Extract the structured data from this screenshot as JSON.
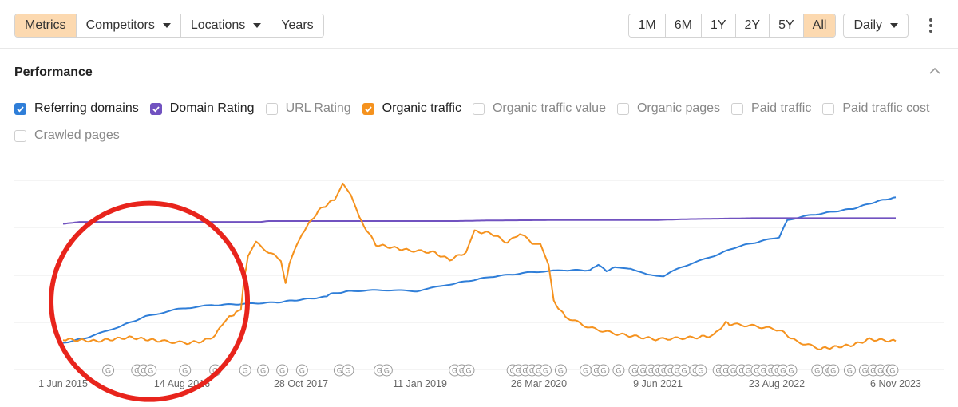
{
  "toolbar": {
    "tabs": [
      {
        "label": "Metrics",
        "active": true
      },
      {
        "label": "Competitors",
        "dropdown": true
      },
      {
        "label": "Locations",
        "dropdown": true
      },
      {
        "label": "Years"
      }
    ],
    "ranges": [
      {
        "label": "1M"
      },
      {
        "label": "6M"
      },
      {
        "label": "1Y"
      },
      {
        "label": "2Y"
      },
      {
        "label": "5Y"
      },
      {
        "label": "All",
        "active": true
      }
    ],
    "interval": "Daily"
  },
  "panel": {
    "title": "Performance"
  },
  "legend": [
    {
      "label": "Referring domains",
      "checked": true,
      "color": "#2f7ed8"
    },
    {
      "label": "Domain Rating",
      "checked": true,
      "color": "#7152c0"
    },
    {
      "label": "URL Rating",
      "checked": false
    },
    {
      "label": "Organic traffic",
      "checked": true,
      "color": "#f5921e"
    },
    {
      "label": "Organic traffic value",
      "checked": false
    },
    {
      "label": "Organic pages",
      "checked": false
    },
    {
      "label": "Paid traffic",
      "checked": false
    },
    {
      "label": "Paid traffic cost",
      "checked": false
    },
    {
      "label": "Crawled pages",
      "checked": false
    }
  ],
  "chart_data": {
    "type": "line",
    "x_labels": [
      "1 Jun 2015",
      "14 Aug 2016",
      "28 Oct 2017",
      "11 Jan 2019",
      "26 Mar 2020",
      "9 Jun 2021",
      "23 Aug 2022",
      "6 Nov 2023"
    ],
    "xlim": [
      "2015-06-01",
      "2023-11-06"
    ],
    "y_range": [
      0,
      100
    ],
    "y_axis_labels": "none shown",
    "grid": true,
    "update_marker": "G",
    "update_markers_x": [
      "2015-11-15",
      "2016-03-01",
      "2016-03-25",
      "2016-04-20",
      "2016-08-25",
      "2016-12-15",
      "2017-04-05",
      "2017-06-10",
      "2017-08-20",
      "2017-11-01",
      "2018-03-20",
      "2018-04-20",
      "2018-08-15",
      "2018-09-10",
      "2019-05-20",
      "2019-06-15",
      "2019-07-10",
      "2019-12-20",
      "2020-01-10",
      "2020-02-05",
      "2020-03-01",
      "2020-03-25",
      "2020-04-20",
      "2020-06-15",
      "2020-09-15",
      "2020-10-25",
      "2020-11-20",
      "2021-01-15",
      "2021-03-15",
      "2021-04-15",
      "2021-05-15",
      "2021-06-10",
      "2021-07-01",
      "2021-07-25",
      "2021-08-20",
      "2021-09-15",
      "2021-10-25",
      "2021-11-15",
      "2022-01-20",
      "2022-02-15",
      "2022-03-15",
      "2022-04-15",
      "2022-05-10",
      "2022-06-10",
      "2022-07-05",
      "2022-08-01",
      "2022-08-25",
      "2022-09-15",
      "2022-10-15",
      "2023-01-20",
      "2023-03-01",
      "2023-03-20",
      "2023-05-20",
      "2023-07-15",
      "2023-08-15",
      "2023-09-10",
      "2023-10-10",
      "2023-10-25"
    ],
    "annotation": {
      "shape": "circle",
      "color": "#e8241c",
      "cx": "2016-04-15",
      "cy": 36
    },
    "series": [
      {
        "name": "Referring domains",
        "color": "#2f7ed8",
        "points": [
          [
            "2015-06-01",
            14
          ],
          [
            "2015-09-01",
            17
          ],
          [
            "2016-01-01",
            23
          ],
          [
            "2016-04-01",
            28
          ],
          [
            "2016-08-01",
            32
          ],
          [
            "2016-12-01",
            34
          ],
          [
            "2017-03-01",
            34.5
          ],
          [
            "2017-08-01",
            35.5
          ],
          [
            "2017-11-01",
            37
          ],
          [
            "2018-02-01",
            38.5
          ],
          [
            "2018-02-15",
            40
          ],
          [
            "2018-05-01",
            41.5
          ],
          [
            "2018-09-01",
            42
          ],
          [
            "2019-01-01",
            41.5
          ],
          [
            "2019-05-01",
            45
          ],
          [
            "2019-10-01",
            49
          ],
          [
            "2020-03-01",
            51.5
          ],
          [
            "2020-07-01",
            52.5
          ],
          [
            "2020-10-01",
            52.5
          ],
          [
            "2020-11-01",
            55.5
          ],
          [
            "2020-12-01",
            52
          ],
          [
            "2021-01-01",
            54
          ],
          [
            "2021-03-01",
            53.5
          ],
          [
            "2021-05-01",
            50
          ],
          [
            "2021-07-01",
            49.5
          ],
          [
            "2021-09-01",
            54
          ],
          [
            "2022-01-01",
            60
          ],
          [
            "2022-04-01",
            65
          ],
          [
            "2022-07-01",
            68
          ],
          [
            "2022-09-01",
            70
          ],
          [
            "2022-10-01",
            79
          ],
          [
            "2022-12-01",
            81
          ],
          [
            "2023-03-01",
            83
          ],
          [
            "2023-06-01",
            85
          ],
          [
            "2023-09-01",
            89
          ],
          [
            "2023-11-06",
            91
          ]
        ]
      },
      {
        "name": "Domain Rating",
        "color": "#7152c0",
        "points": [
          [
            "2015-06-01",
            77
          ],
          [
            "2015-08-01",
            78
          ],
          [
            "2017-06-01",
            78
          ],
          [
            "2017-07-01",
            78.5
          ],
          [
            "2019-06-01",
            78.5
          ],
          [
            "2019-10-01",
            78.8
          ],
          [
            "2020-06-01",
            79
          ],
          [
            "2021-06-01",
            79
          ],
          [
            "2021-10-01",
            79.5
          ],
          [
            "2022-06-01",
            80
          ],
          [
            "2022-09-01",
            80
          ],
          [
            "2023-11-06",
            80
          ]
        ]
      },
      {
        "name": "Organic traffic",
        "color": "#f5921e",
        "points": [
          [
            "2015-06-01",
            16
          ],
          [
            "2015-10-01",
            15
          ],
          [
            "2016-02-01",
            17
          ],
          [
            "2016-06-01",
            15
          ],
          [
            "2016-09-01",
            14
          ],
          [
            "2016-11-01",
            15
          ],
          [
            "2016-12-15",
            18
          ],
          [
            "2017-01-20",
            26
          ],
          [
            "2017-03-01",
            30
          ],
          [
            "2017-03-20",
            31
          ],
          [
            "2017-04-01",
            48
          ],
          [
            "2017-04-15",
            60
          ],
          [
            "2017-05-15",
            67
          ],
          [
            "2017-07-01",
            62
          ],
          [
            "2017-08-15",
            58
          ],
          [
            "2017-09-01",
            45
          ],
          [
            "2017-09-15",
            56
          ],
          [
            "2017-11-01",
            72
          ],
          [
            "2018-01-01",
            84
          ],
          [
            "2018-03-01",
            90
          ],
          [
            "2018-04-01",
            99
          ],
          [
            "2018-05-01",
            92
          ],
          [
            "2018-06-01",
            80
          ],
          [
            "2018-08-01",
            66
          ],
          [
            "2018-12-01",
            63
          ],
          [
            "2019-03-01",
            62
          ],
          [
            "2019-05-01",
            58
          ],
          [
            "2019-07-01",
            62
          ],
          [
            "2019-08-01",
            73
          ],
          [
            "2019-10-01",
            72
          ],
          [
            "2019-12-01",
            67
          ],
          [
            "2020-01-15",
            72
          ],
          [
            "2020-03-01",
            67
          ],
          [
            "2020-04-01",
            67
          ],
          [
            "2020-05-01",
            55
          ],
          [
            "2020-05-20",
            36
          ],
          [
            "2020-07-01",
            28
          ],
          [
            "2020-10-01",
            22
          ],
          [
            "2021-01-01",
            19
          ],
          [
            "2021-06-01",
            16
          ],
          [
            "2021-11-01",
            17
          ],
          [
            "2022-01-01",
            18
          ],
          [
            "2022-02-15",
            25
          ],
          [
            "2022-03-01",
            24
          ],
          [
            "2022-06-01",
            23
          ],
          [
            "2022-09-01",
            21
          ],
          [
            "2022-11-01",
            15
          ],
          [
            "2023-02-01",
            11
          ],
          [
            "2023-06-01",
            13
          ],
          [
            "2023-08-01",
            16
          ],
          [
            "2023-11-06",
            15
          ]
        ]
      }
    ]
  }
}
